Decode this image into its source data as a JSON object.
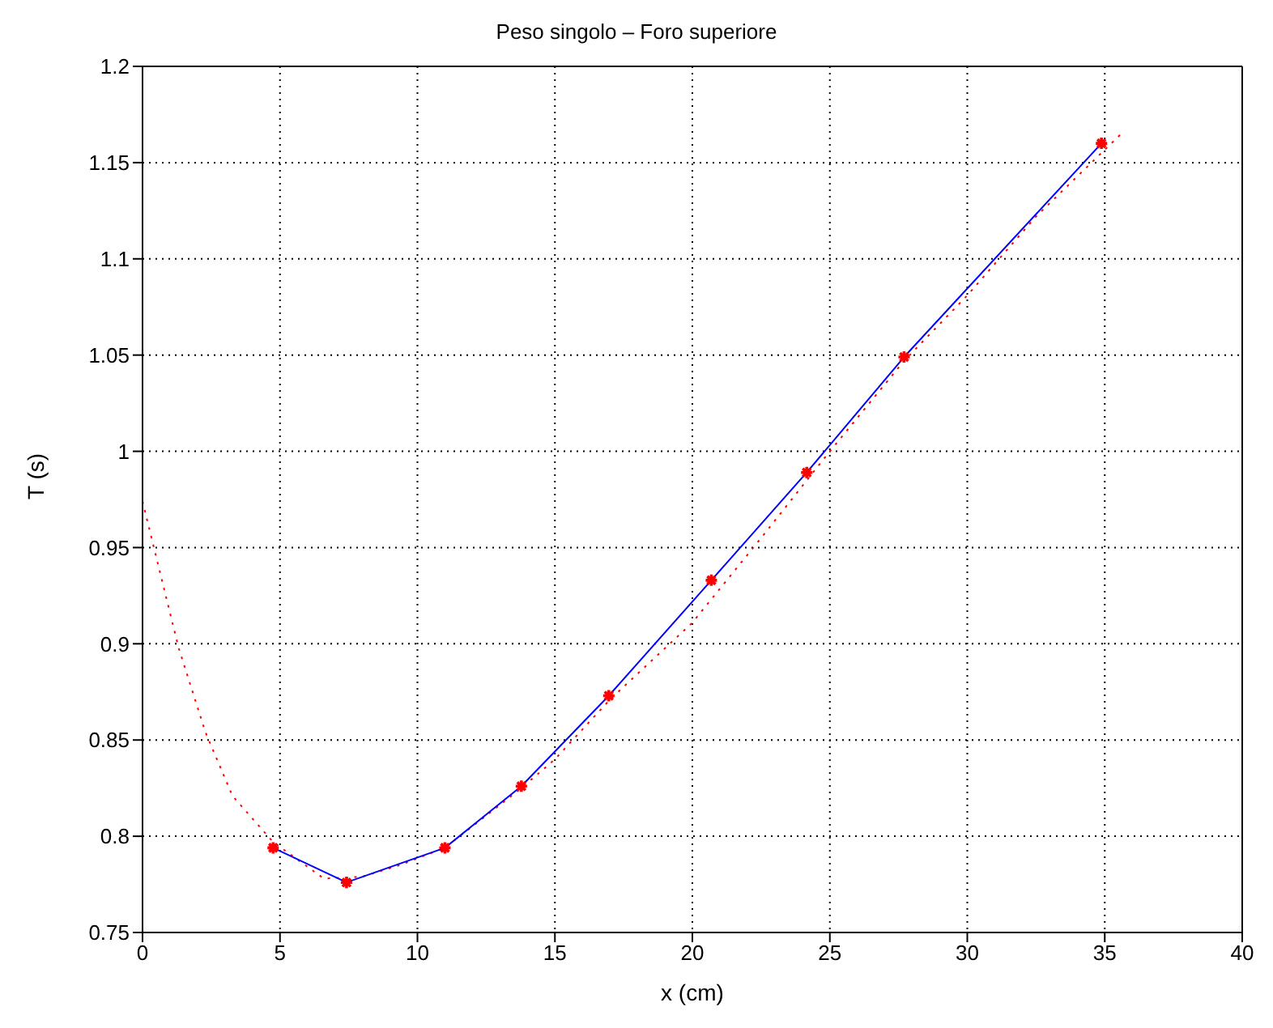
{
  "chart_data": {
    "type": "line",
    "title": "Peso singolo – Foro superiore",
    "xlabel": "x (cm)",
    "ylabel": "T (s)",
    "series": [
      {
        "color": "#ff0000",
        "line_style": "dotted",
        "marker": "none",
        "x": [
          0,
          0.5,
          1.31,
          2.29,
          3.27,
          4.75,
          6.6,
          8,
          9.36,
          11,
          13.78,
          15,
          17,
          20,
          22.5,
          25,
          27.7,
          30,
          32.5,
          35.6
        ],
        "values": [
          0.974,
          0.945,
          0.898,
          0.854,
          0.821,
          0.797,
          0.778,
          0.779,
          0.785,
          0.794,
          0.825,
          0.84,
          0.871,
          0.911,
          0.955,
          1.0,
          1.047,
          1.081,
          1.122,
          1.165
        ]
      },
      {
        "color": "#0000ff",
        "line_style": "solid",
        "marker": "none",
        "x": [
          4.75,
          7.42,
          11.0,
          13.78,
          16.96,
          20.69,
          24.16,
          27.7,
          34.88
        ],
        "values": [
          0.794,
          0.776,
          0.794,
          0.826,
          0.873,
          0.933,
          0.989,
          1.049,
          1.16
        ]
      },
      {
        "type": "scatter",
        "color": "#ff0000",
        "marker": "cross",
        "x": [
          4.75,
          7.42,
          11.0,
          13.78,
          16.96,
          20.69,
          24.16,
          27.7,
          34.88
        ],
        "values": [
          0.794,
          0.776,
          0.794,
          0.826,
          0.873,
          0.933,
          0.989,
          1.049,
          1.16
        ]
      }
    ],
    "xlim": [
      0,
      40
    ],
    "xticks": [
      0,
      5,
      10,
      15,
      20,
      25,
      30,
      35,
      40
    ],
    "ylim": [
      0.75,
      1.2
    ],
    "yticks": [
      0.75,
      0.8,
      0.85,
      0.9,
      0.95,
      1,
      1.05,
      1.1,
      1.15,
      1.2
    ],
    "grid": true
  }
}
